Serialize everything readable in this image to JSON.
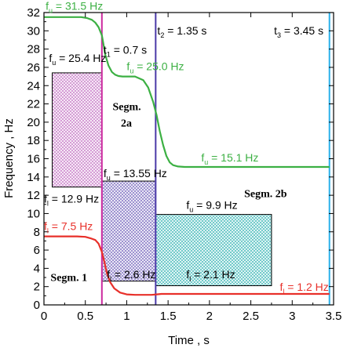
{
  "chart_data": {
    "type": "line",
    "xlabel": "Time , s",
    "ylabel": "Frequency , Hz",
    "xlim": [
      0,
      3.5
    ],
    "ylim": [
      0,
      32
    ],
    "x_ticks": [
      "0",
      "0.5",
      "1",
      "1.5",
      "2",
      "2.5",
      "3",
      "3.5"
    ],
    "y_ticks": [
      "0",
      "2",
      "4",
      "6",
      "8",
      "10",
      "12",
      "14",
      "16",
      "18",
      "20",
      "22",
      "24",
      "26",
      "28",
      "30",
      "32"
    ],
    "grid": false,
    "series": [
      {
        "color": "#3cb043",
        "x": [
          0,
          0.45,
          0.52,
          0.58,
          0.62,
          0.66,
          0.7,
          0.72,
          0.74,
          0.78,
          0.82,
          0.86,
          0.9,
          0.95,
          1.0,
          1.1,
          1.2,
          1.26,
          1.32,
          1.36,
          1.4,
          1.44,
          1.48,
          1.52,
          1.56,
          1.62,
          1.7,
          2.0,
          2.5,
          3.0,
          3.45
        ],
        "values": [
          31.5,
          31.5,
          31.4,
          31.2,
          30.9,
          30.4,
          29.5,
          28.5,
          27.4,
          26.2,
          25.5,
          25.2,
          25.05,
          25.0,
          25.0,
          25.0,
          24.6,
          23.8,
          22.2,
          20.8,
          19.0,
          17.5,
          16.3,
          15.6,
          15.3,
          15.15,
          15.1,
          15.1,
          15.1,
          15.1,
          15.1
        ]
      },
      {
        "color": "#e8302a",
        "x": [
          0,
          0.4,
          0.5,
          0.56,
          0.62,
          0.66,
          0.7,
          0.73,
          0.76,
          0.8,
          0.85,
          0.92,
          1.0,
          1.1,
          1.2,
          1.3,
          1.36,
          1.42,
          1.5,
          1.6,
          2.0,
          2.5,
          3.0,
          3.45
        ],
        "values": [
          7.5,
          7.5,
          7.45,
          7.3,
          7.1,
          6.7,
          5.8,
          4.7,
          3.5,
          2.5,
          1.8,
          1.35,
          1.15,
          1.1,
          1.1,
          1.1,
          1.15,
          1.2,
          1.2,
          1.2,
          1.2,
          1.2,
          1.2,
          1.2
        ]
      }
    ],
    "regions": [
      {
        "x0": 0.1,
        "x1": 0.7,
        "y0": 12.9,
        "y1": 25.4,
        "color": "#c678c6",
        "pattern": "cross-hatch"
      },
      {
        "x0": 0.7,
        "x1": 1.35,
        "y0": 2.6,
        "y1": 13.55,
        "color": "#7a6bc0",
        "pattern": "cross-hatch"
      },
      {
        "x0": 1.35,
        "x1": 2.75,
        "y0": 2.1,
        "y1": 9.9,
        "color": "#40b8b8",
        "pattern": "cross-hatch"
      }
    ],
    "markers": [
      {
        "x": 0.7,
        "color": "#cc2a9e"
      },
      {
        "x": 1.35,
        "color": "#4b3aa8"
      },
      {
        "x": 3.45,
        "color": "#2ab0ea"
      }
    ],
    "annotations": [
      {
        "text": "fu = 31.5 Hz",
        "color": "#3cb043",
        "x": 0.02,
        "y": 32.3
      },
      {
        "text": "t1 = 0.7 s",
        "color": "#000000",
        "x": 0.72,
        "y": 27.5
      },
      {
        "text": "t2 = 1.35 s",
        "color": "#000000",
        "x": 1.37,
        "y": 29.6
      },
      {
        "text": "t3 = 3.45 s",
        "color": "#000000",
        "x": 2.78,
        "y": 29.6
      },
      {
        "text": "fu = 25.4 Hz",
        "color": "#000000",
        "x": 0.06,
        "y": 26.6
      },
      {
        "text": "fu = 25.0 Hz",
        "color": "#3cb043",
        "x": 1.0,
        "y": 25.7
      },
      {
        "text": "Segm.",
        "color": "#000000",
        "x": 0.83,
        "y": 21.3
      },
      {
        "text": "2a",
        "color": "#000000",
        "x": 0.93,
        "y": 19.5
      },
      {
        "text": "fu = 15.1 Hz",
        "color": "#3cb043",
        "x": 1.9,
        "y": 15.7
      },
      {
        "text": "fu = 13.55 Hz",
        "color": "#000000",
        "x": 0.72,
        "y": 14.0
      },
      {
        "text": "Segm. 2b",
        "color": "#000000",
        "x": 2.42,
        "y": 11.8
      },
      {
        "text": "fl = 12.9 Hz",
        "color": "#000000",
        "x": 0.0,
        "y": 11.2
      },
      {
        "text": "fu = 9.9 Hz",
        "color": "#000000",
        "x": 1.72,
        "y": 10.5
      },
      {
        "text": "fl = 7.5 Hz",
        "color": "#e8302a",
        "x": 0.0,
        "y": 8.2
      },
      {
        "text": "Segm. 1",
        "color": "#000000",
        "x": 0.08,
        "y": 2.6
      },
      {
        "text": "fl = 2.6 Hz",
        "color": "#000000",
        "x": 0.76,
        "y": 2.9
      },
      {
        "text": "fl = 2.1 Hz",
        "color": "#000000",
        "x": 1.72,
        "y": 2.9
      },
      {
        "text": "fl = 1.2 Hz",
        "color": "#e8302a",
        "x": 2.85,
        "y": 1.55
      }
    ]
  }
}
